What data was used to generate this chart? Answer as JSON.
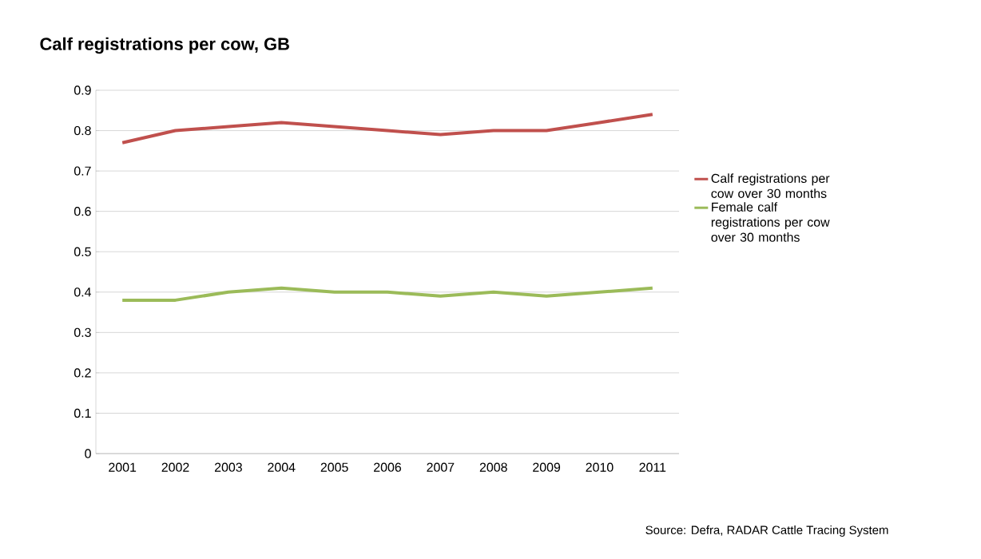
{
  "chart_data": {
    "type": "line",
    "title": "Calf registrations per cow, GB",
    "categories": [
      "2001",
      "2002",
      "2003",
      "2004",
      "2005",
      "2006",
      "2007",
      "2008",
      "2009",
      "2010",
      "2011"
    ],
    "series": [
      {
        "name": "Calf registrations per cow over 30 months",
        "color": "#c0504d",
        "values": [
          0.77,
          0.8,
          0.81,
          0.82,
          0.81,
          0.8,
          0.79,
          0.8,
          0.8,
          0.82,
          0.84
        ]
      },
      {
        "name": "Female calf registrations per cow over 30 months",
        "color": "#9bbb59",
        "values": [
          0.38,
          0.38,
          0.4,
          0.41,
          0.4,
          0.4,
          0.39,
          0.4,
          0.39,
          0.4,
          0.41
        ]
      }
    ],
    "ylim": [
      0,
      0.9
    ],
    "yticks": [
      0,
      0.1,
      0.2,
      0.3,
      0.4,
      0.5,
      0.6,
      0.7,
      0.8,
      0.9
    ],
    "grid": "y",
    "legend": "right",
    "marker": "none",
    "line_style": "solid",
    "annotations": [
      "Source:  Defra, RADAR Cattle Tracing System"
    ]
  }
}
